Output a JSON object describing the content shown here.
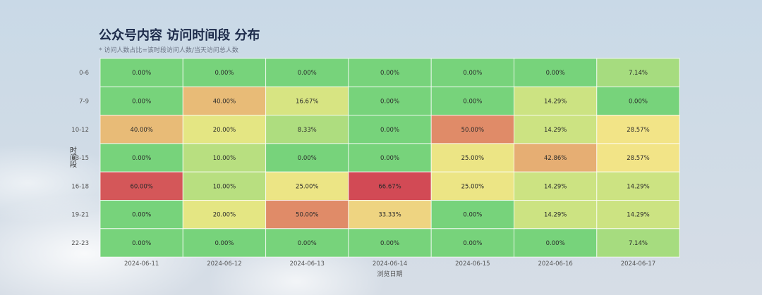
{
  "chart_data": {
    "type": "heatmap",
    "title": "公众号内容 访问时间段 分布",
    "subtitle": "* 访问人数占比=该时段访问人数/当天访问总人数",
    "xlabel": "浏览日期",
    "ylabel": "时间段",
    "x": [
      "2024-06-11",
      "2024-06-12",
      "2024-06-13",
      "2024-06-14",
      "2024-06-15",
      "2024-06-16",
      "2024-06-17"
    ],
    "y": [
      "0-6",
      "7-9",
      "10-12",
      "13-15",
      "16-18",
      "19-21",
      "22-23"
    ],
    "values": [
      [
        0.0,
        0.0,
        0.0,
        0.0,
        0.0,
        0.0,
        7.14
      ],
      [
        0.0,
        40.0,
        16.67,
        0.0,
        0.0,
        14.29,
        0.0
      ],
      [
        40.0,
        20.0,
        8.33,
        0.0,
        50.0,
        14.29,
        28.57
      ],
      [
        0.0,
        10.0,
        0.0,
        0.0,
        25.0,
        42.86,
        28.57
      ],
      [
        60.0,
        10.0,
        25.0,
        66.67,
        25.0,
        14.29,
        14.29
      ],
      [
        0.0,
        20.0,
        50.0,
        33.33,
        0.0,
        14.29,
        14.29
      ],
      [
        0.0,
        0.0,
        0.0,
        0.0,
        0.0,
        0.0,
        7.14
      ]
    ],
    "labels": [
      [
        "0.00%",
        "0.00%",
        "0.00%",
        "0.00%",
        "0.00%",
        "0.00%",
        "7.14%"
      ],
      [
        "0.00%",
        "40.00%",
        "16.67%",
        "0.00%",
        "0.00%",
        "14.29%",
        "0.00%"
      ],
      [
        "40.00%",
        "20.00%",
        "8.33%",
        "0.00%",
        "50.00%",
        "14.29%",
        "28.57%"
      ],
      [
        "0.00%",
        "10.00%",
        "0.00%",
        "0.00%",
        "25.00%",
        "42.86%",
        "28.57%"
      ],
      [
        "60.00%",
        "10.00%",
        "25.00%",
        "66.67%",
        "25.00%",
        "14.29%",
        "14.29%"
      ],
      [
        "0.00%",
        "20.00%",
        "50.00%",
        "33.33%",
        "0.00%",
        "14.29%",
        "14.29%"
      ],
      [
        "0.00%",
        "0.00%",
        "0.00%",
        "0.00%",
        "0.00%",
        "0.00%",
        "7.14%"
      ]
    ],
    "value_range": [
      0,
      66.67
    ],
    "colors": {
      "scale": [
        "#77d37b",
        "#b6df80",
        "#e2e683",
        "#f2e487",
        "#e9c37a",
        "#e39a6d",
        "#d55c5a",
        "#d24a55"
      ]
    },
    "grid": true
  }
}
